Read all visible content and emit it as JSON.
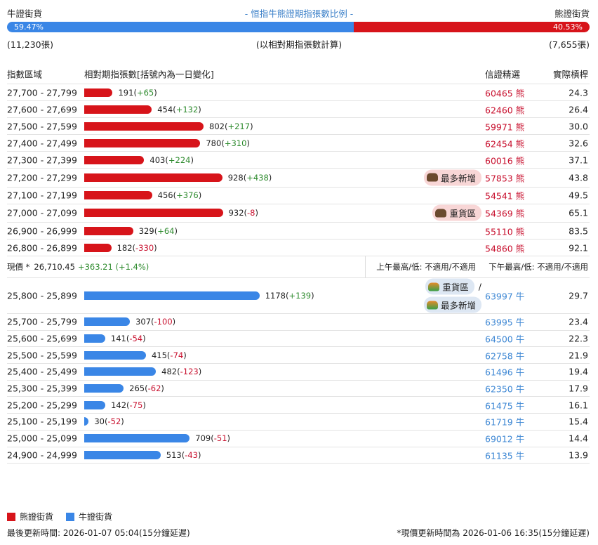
{
  "header": {
    "left": "牛證街貨",
    "title": "- 恒指牛熊證期指張數比例 -",
    "right": "熊證街貨"
  },
  "ratio": {
    "bull_pct": 59.47,
    "bull_label": "59.47%",
    "bear_pct": 40.53,
    "bear_label": "40.53%",
    "bull_count": "(11,230張)",
    "note": "(以相對期指張數計算)",
    "bear_count": "(7,655張)"
  },
  "columns": [
    "指數區域",
    "相對期指張數[括號內為一日變化]",
    "信證精選",
    "實際槓桿"
  ],
  "bear_rows": [
    {
      "range": "27,700 - 27,799",
      "count": 191,
      "change": "+65",
      "code": "60465",
      "side": "熊",
      "leverage": "24.3"
    },
    {
      "range": "27,600 - 27,699",
      "count": 454,
      "change": "+132",
      "code": "62460",
      "side": "熊",
      "leverage": "26.4"
    },
    {
      "range": "27,500 - 27,599",
      "count": 802,
      "change": "+217",
      "code": "59971",
      "side": "熊",
      "leverage": "30.0"
    },
    {
      "range": "27,400 - 27,499",
      "count": 780,
      "change": "+310",
      "code": "62454",
      "side": "熊",
      "leverage": "32.6"
    },
    {
      "range": "27,300 - 27,399",
      "count": 403,
      "change": "+224",
      "code": "60016",
      "side": "熊",
      "leverage": "37.1"
    },
    {
      "range": "27,200 - 27,299",
      "count": 928,
      "change": "+438",
      "tags": [
        "最多新增"
      ],
      "code": "57853",
      "side": "熊",
      "leverage": "43.8"
    },
    {
      "range": "27,100 - 27,199",
      "count": 456,
      "change": "+376",
      "code": "54541",
      "side": "熊",
      "leverage": "49.5"
    },
    {
      "range": "27,000 - 27,099",
      "count": 932,
      "change": "-8",
      "tags": [
        "重貨區"
      ],
      "code": "54369",
      "side": "熊",
      "leverage": "65.1"
    },
    {
      "range": "26,900 - 26,999",
      "count": 329,
      "change": "+64",
      "code": "55110",
      "side": "熊",
      "leverage": "83.5"
    },
    {
      "range": "26,800 - 26,899",
      "count": 182,
      "change": "-330",
      "code": "54860",
      "side": "熊",
      "leverage": "92.1"
    }
  ],
  "current": {
    "label": "現價 *",
    "price": "26,710.45",
    "change": "+363.21 (+1.4%)",
    "am": "上午最高/低: 不適用/不適用",
    "pm": "下午最高/低: 不適用/不適用"
  },
  "bull_rows": [
    {
      "range": "25,800 - 25,899",
      "count": 1178,
      "change": "+139",
      "tags": [
        "重貨區",
        "最多新增"
      ],
      "tag_sep": "/",
      "code": "63997",
      "side": "牛",
      "leverage": "29.7"
    },
    {
      "range": "25,700 - 25,799",
      "count": 307,
      "change": "-100",
      "code": "63995",
      "side": "牛",
      "leverage": "23.4"
    },
    {
      "range": "25,600 - 25,699",
      "count": 141,
      "change": "-54",
      "code": "64500",
      "side": "牛",
      "leverage": "22.3"
    },
    {
      "range": "25,500 - 25,599",
      "count": 415,
      "change": "-74",
      "code": "62758",
      "side": "牛",
      "leverage": "21.9"
    },
    {
      "range": "25,400 - 25,499",
      "count": 482,
      "change": "-123",
      "code": "61496",
      "side": "牛",
      "leverage": "19.4"
    },
    {
      "range": "25,300 - 25,399",
      "count": 265,
      "change": "-62",
      "code": "62350",
      "side": "牛",
      "leverage": "17.9"
    },
    {
      "range": "25,200 - 25,299",
      "count": 142,
      "change": "-75",
      "code": "61475",
      "side": "牛",
      "leverage": "16.1"
    },
    {
      "range": "25,100 - 25,199",
      "count": 30,
      "change": "-52",
      "code": "61719",
      "side": "牛",
      "leverage": "15.4"
    },
    {
      "range": "25,000 - 25,099",
      "count": 709,
      "change": "-51",
      "code": "69012",
      "side": "牛",
      "leverage": "14.4"
    },
    {
      "range": "24,900 - 24,999",
      "count": 513,
      "change": "-43",
      "code": "61135",
      "side": "牛",
      "leverage": "13.9"
    }
  ],
  "legend": {
    "bear": "熊證街貨",
    "bull": "牛證街貨"
  },
  "footer": {
    "left": "最後更新時間: 2026-01-07 05:04(15分鐘延遲)",
    "right": "*現價更新時間為 2026-01-06 16:35(15分鐘延遲)"
  }
}
